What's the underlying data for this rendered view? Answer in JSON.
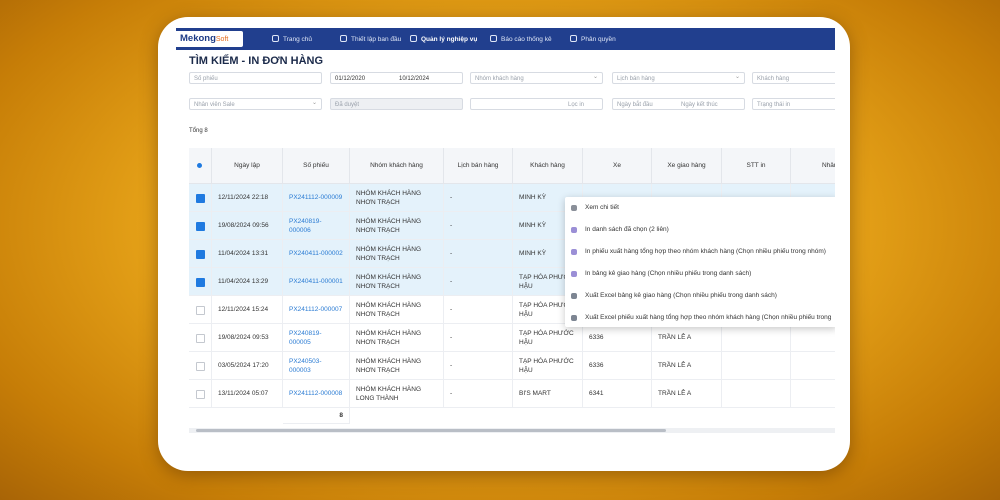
{
  "logo": {
    "brand": "Mekong",
    "suffix": "Soft"
  },
  "nav": [
    "Trang chủ",
    "Thiết lập ban đầu",
    "Quản lý nghiệp vụ",
    "Báo cáo thống kê",
    "Phân quyền"
  ],
  "title": "TÌM KIẾM - IN ĐƠN HÀNG",
  "filters": {
    "row1": [
      "Số phiếu",
      "Nhóm khách hàng",
      "Lịch bán hàng",
      "Khách hàng"
    ],
    "date_from": "01/12/2020",
    "date_to": "10/12/2024",
    "row2": [
      "Nhân viên Sale",
      "Đã duyệt",
      "Lọc in",
      "Trạng thái in"
    ],
    "range_from": "Ngày bắt đầu",
    "range_to": "Ngày kết thúc"
  },
  "total": "Tổng 8",
  "table": {
    "headers": [
      "Ngày lập",
      "Số phiếu",
      "Nhóm khách hàng",
      "Lịch bán hàng",
      "Khách hàng",
      "Xe",
      "Xe giao hàng",
      "STT in",
      "Nhân vi"
    ],
    "rows": [
      {
        "selected": true,
        "cells": [
          "12/11/2024 22:18",
          "PX241112-000009",
          "NHÓM KHÁCH HÀNG NHƠN TRẠCH",
          "-",
          "MINH KỲ"
        ]
      },
      {
        "selected": true,
        "cells": [
          "19/08/2024 09:56",
          "PX240819-000006",
          "NHÓM KHÁCH HÀNG NHƠN TRẠCH",
          "-",
          "MINH KỲ"
        ]
      },
      {
        "selected": true,
        "cells": [
          "11/04/2024 13:31",
          "PX240411-000002",
          "NHÓM KHÁCH HÀNG NHƠN TRẠCH",
          "-",
          "MINH KỲ"
        ]
      },
      {
        "selected": true,
        "cells": [
          "11/04/2024 13:29",
          "PX240411-000001",
          "NHÓM KHÁCH HÀNG NHƠN TRẠCH",
          "-",
          "TẠP HÓA PHƯỚC HẬU"
        ]
      },
      {
        "selected": false,
        "cells": [
          "12/11/2024 15:24",
          "PX241112-000007",
          "NHÓM KHÁCH HÀNG NHƠN TRẠCH",
          "-",
          "TẠP HÓA PHƯỚC HẬU"
        ]
      },
      {
        "selected": false,
        "cells": [
          "19/08/2024 09:53",
          "PX240819-000005",
          "NHÓM KHÁCH HÀNG NHƠN TRẠCH",
          "-",
          "TẠP HÓA PHƯỚC HẬU",
          "6336",
          "TRẦN LÊ A"
        ]
      },
      {
        "selected": false,
        "cells": [
          "03/05/2024 17:20",
          "PX240503-000003",
          "NHÓM KHÁCH HÀNG NHƠN TRẠCH",
          "-",
          "TẠP HÓA PHƯỚC HẬU",
          "6336",
          "TRẦN LÊ A"
        ]
      },
      {
        "selected": false,
        "cells": [
          "13/11/2024 05:07",
          "PX241112-000008",
          "NHÓM KHÁCH HÀNG LONG THÀNH",
          "-",
          "BI'S MART",
          "6341",
          "TRẦN LÊ A"
        ]
      }
    ],
    "footer_count": "8"
  },
  "context_menu": [
    "Xem chi tiết",
    "In danh sách đã chọn (2 liên)",
    "In phiếu xuất hàng tổng hợp theo nhóm khách hàng (Chọn nhiều phiếu trong nhóm)",
    "In bảng kê giao hàng (Chọn nhiều phiếu trong danh sách)",
    "Xuất Excel bảng kê giao hàng (Chọn nhiều phiếu trong danh sách)",
    "Xuất Excel phiếu xuất hàng tổng hợp theo nhóm khách hàng (Chọn nhiều phiếu trong"
  ]
}
